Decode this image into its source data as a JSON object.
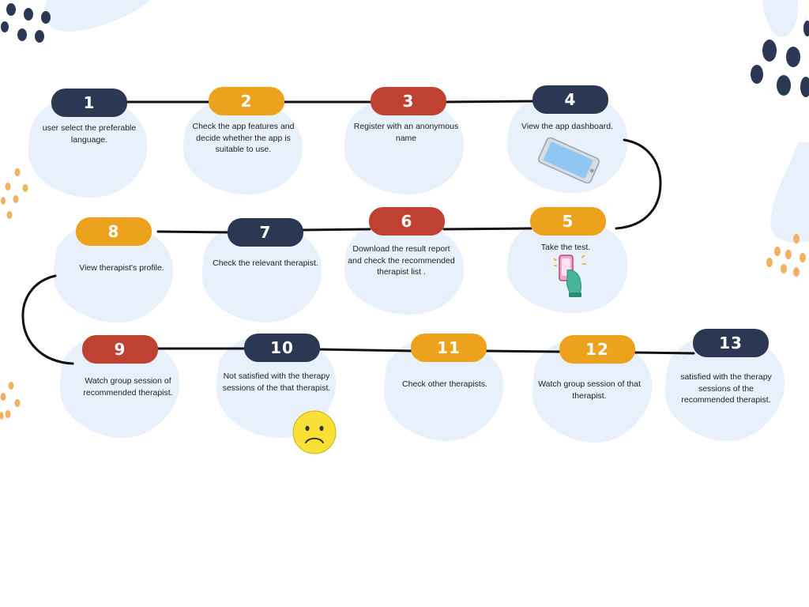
{
  "steps": [
    {
      "number": "1",
      "text": "user select the preferable language."
    },
    {
      "number": "2",
      "text": "Check the app features and decide whether the app is suitable to use."
    },
    {
      "number": "3",
      "text": "Register with an anonymous name"
    },
    {
      "number": "4",
      "text": "View the app dashboard."
    },
    {
      "number": "5",
      "text": "Take the test."
    },
    {
      "number": "6",
      "text": "Download the result report and check the recommended therapist list ."
    },
    {
      "number": "7",
      "text": "Check the relevant therapist."
    },
    {
      "number": "8",
      "text": "View therapist's profile."
    },
    {
      "number": "9",
      "text": "Watch group session of recommended therapist."
    },
    {
      "number": "10",
      "text": "Not satisfied with the therapy sessions of the that therapist."
    },
    {
      "number": "11",
      "text": "Check other therapists."
    },
    {
      "number": "12",
      "text": "Watch group session of that therapist."
    },
    {
      "number": "13",
      "text": "satisfied with the therapy sessions of the recommended therapist."
    }
  ],
  "icons": {
    "phone": "smartphone-icon",
    "hand_phone": "hand-holding-phone-icon",
    "sad_face": "sad-face-icon"
  },
  "colors": {
    "navy": "#2c3753",
    "yellow": "#eda21e",
    "red": "#bf4131",
    "blob": "#e8f1fb",
    "line": "#111111"
  }
}
